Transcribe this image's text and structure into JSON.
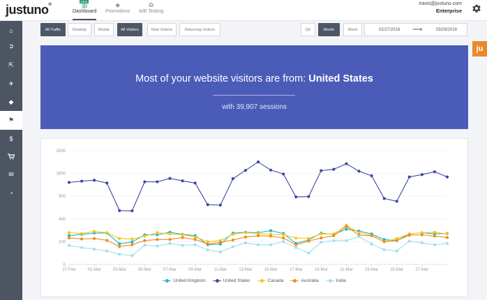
{
  "header": {
    "logo": "justuno",
    "logo_mark": "®",
    "new_badge": "NEW",
    "tabs": [
      {
        "label": "Dashboard",
        "icon": "bar-chart-icon",
        "active": true
      },
      {
        "label": "Promotions",
        "icon": "tag-icon",
        "active": false
      },
      {
        "label": "A/B Testing",
        "icon": "copy-icon",
        "active": false
      }
    ],
    "user_email": "travis@justuno.com",
    "plan": "Enterprise"
  },
  "sidebar": {
    "items": [
      {
        "icon": "home-icon",
        "glyph": "⌂",
        "active": false
      },
      {
        "icon": "sign-in-icon",
        "glyph": "➲",
        "active": false
      },
      {
        "icon": "external-link-icon",
        "glyph": "⇱",
        "active": false
      },
      {
        "icon": "plane-icon",
        "glyph": "✈",
        "active": false
      },
      {
        "icon": "tags-icon",
        "glyph": "◆",
        "active": false
      },
      {
        "icon": "flag-icon",
        "glyph": "⚑",
        "active": true
      },
      {
        "icon": "dollar-icon",
        "glyph": "$",
        "active": false
      },
      {
        "icon": "cart-icon",
        "glyph": "▾",
        "active": false
      },
      {
        "icon": "envelope-icon",
        "glyph": "✉",
        "active": false
      },
      {
        "icon": "dashboard-icon",
        "glyph": "◔",
        "active": false
      }
    ]
  },
  "filters": {
    "device": [
      {
        "label": "All Traffic",
        "active": true
      },
      {
        "label": "Desktop",
        "active": false
      },
      {
        "label": "Mobile",
        "active": false
      }
    ],
    "visitors": [
      {
        "label": "All Visitors",
        "active": true
      },
      {
        "label": "New Visitors",
        "active": false
      },
      {
        "label": "Returning Visitors",
        "active": false
      }
    ],
    "period": [
      {
        "label": "Qtr",
        "active": false
      },
      {
        "label": "Month",
        "active": true
      },
      {
        "label": "Week",
        "active": false
      }
    ],
    "date_start": "02/27/2018",
    "date_end": "03/29/2018",
    "arrow": "⟶"
  },
  "ju_badge": "ju",
  "banner": {
    "prefix": "Most of your website visitors are from: ",
    "country": "United States",
    "sessions_text": "with 39,907 sessions"
  },
  "chart_data": {
    "type": "line",
    "title": "",
    "xlabel": "",
    "ylabel": "",
    "ylim": [
      0,
      2500
    ],
    "yticks": [
      0,
      100,
      400,
      900,
      1600,
      2500
    ],
    "y_scale": "sqrt",
    "grid": true,
    "legend_position": "bottom",
    "x": [
      "27-Feb",
      "28-Feb",
      "01-Mar",
      "02-Mar",
      "03-Mar",
      "04-Mar",
      "05-Mar",
      "06-Mar",
      "07-Mar",
      "08-Mar",
      "09-Mar",
      "10-Mar",
      "11-Mar",
      "12-Mar",
      "13-Mar",
      "14-Mar",
      "15-Mar",
      "16-Mar",
      "17-Mar",
      "18-Mar",
      "19-Mar",
      "20-Mar",
      "21-Mar",
      "22-Mar",
      "23-Mar",
      "24-Mar",
      "25-Mar",
      "26-Mar",
      "27-Mar",
      "28-Mar",
      "29-Mar"
    ],
    "xtick_labels": [
      "27-Feb",
      "01-Mar",
      "03-Mar",
      "05-Mar",
      "07-Mar",
      "09-Mar",
      "11-Mar",
      "13-Mar",
      "15-Mar",
      "17-Mar",
      "19-Mar",
      "21-Mar",
      "23-Mar",
      "25-Mar",
      "27-Mar"
    ],
    "series": [
      {
        "name": "United Kingdom",
        "color": "#1fb6c9",
        "values": [
          160,
          175,
          190,
          190,
          82,
          98,
          170,
          170,
          200,
          175,
          160,
          75,
          80,
          190,
          200,
          195,
          220,
          185,
          85,
          115,
          190,
          175,
          240,
          215,
          180,
          120,
          110,
          180,
          195,
          180,
          185
        ]
      },
      {
        "name": "United States",
        "color": "#3c47a6",
        "values": [
          1300,
          1340,
          1370,
          1280,
          560,
          555,
          1320,
          1320,
          1430,
          1350,
          1280,
          690,
          680,
          1420,
          1710,
          2030,
          1720,
          1580,
          880,
          890,
          1700,
          1750,
          1960,
          1680,
          1520,
          840,
          770,
          1480,
          1560,
          1660,
          1480
        ]
      },
      {
        "name": "Canada",
        "color": "#f5c518",
        "values": [
          195,
          185,
          210,
          195,
          130,
          125,
          155,
          195,
          180,
          170,
          145,
          100,
          110,
          175,
          195,
          185,
          175,
          170,
          135,
          130,
          180,
          180,
          295,
          195,
          165,
          100,
          130,
          180,
          195,
          200,
          180
        ]
      },
      {
        "name": "Australia",
        "color": "#ef8b1d",
        "values": [
          135,
          125,
          130,
          112,
          62,
          75,
          110,
          120,
          120,
          140,
          120,
          80,
          95,
          115,
          145,
          160,
          155,
          135,
          75,
          105,
          135,
          160,
          280,
          165,
          160,
          100,
          110,
          165,
          170,
          155,
          140
        ]
      },
      {
        "name": "India",
        "color": "#9ee0ee",
        "values": [
          70,
          55,
          45,
          35,
          20,
          15,
          72,
          65,
          85,
          70,
          75,
          40,
          30,
          60,
          90,
          75,
          75,
          100,
          55,
          25,
          95,
          110,
          110,
          150,
          80,
          42,
          35,
          105,
          90,
          75,
          85
        ]
      }
    ]
  }
}
